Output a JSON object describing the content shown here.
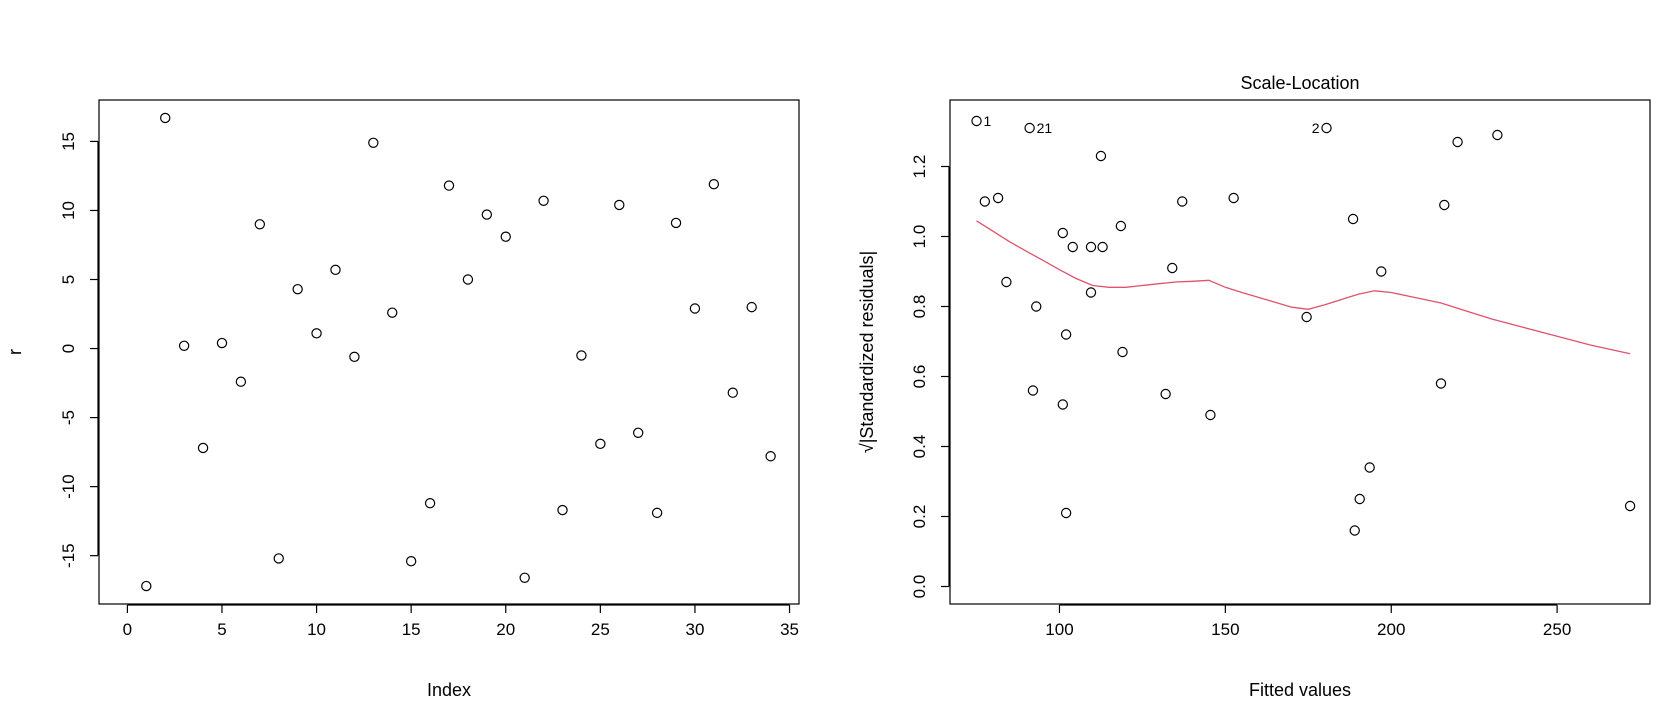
{
  "chart_data": [
    {
      "type": "scatter",
      "title": "",
      "xlabel": "Index",
      "ylabel": "r",
      "xlim": [
        -1.5,
        35.5
      ],
      "ylim": [
        -18.5,
        18
      ],
      "x_ticks": [
        0,
        5,
        10,
        15,
        20,
        25,
        30,
        35
      ],
      "y_ticks": [
        -15,
        -10,
        -5,
        0,
        5,
        10,
        15
      ],
      "x_tick_labels": [
        "0",
        "5",
        "10",
        "15",
        "20",
        "25",
        "30",
        "35"
      ],
      "y_tick_labels": [
        "-15",
        "-10",
        "-5",
        "0",
        "5",
        "10",
        "15"
      ],
      "grid": false,
      "series": [
        {
          "x": [
            1,
            2,
            3,
            4,
            5,
            6,
            7,
            8,
            9,
            10,
            11,
            12,
            13,
            14,
            15,
            16,
            17,
            18,
            19,
            20,
            21,
            22,
            23,
            24,
            25,
            26,
            27,
            28,
            29,
            30,
            31,
            32,
            33,
            34
          ],
          "y": [
            -17.2,
            16.7,
            0.2,
            -7.2,
            0.4,
            -2.4,
            9.0,
            -15.2,
            4.3,
            1.1,
            5.7,
            -0.6,
            14.9,
            2.6,
            -15.4,
            -11.2,
            11.8,
            5.0,
            9.7,
            8.1,
            -16.6,
            10.7,
            -11.7,
            -0.5,
            -6.9,
            10.4,
            -6.1,
            -11.9,
            9.1,
            2.9,
            11.9,
            -3.2,
            3.0,
            -7.8
          ]
        }
      ]
    },
    {
      "type": "scatter",
      "title": "Scale-Location",
      "xlabel": "Fitted values",
      "ylabel": "√|Standardized residuals|",
      "xlim": [
        67,
        278
      ],
      "ylim": [
        -0.05,
        1.39
      ],
      "x_ticks": [
        100,
        150,
        200,
        250
      ],
      "y_ticks": [
        0.0,
        0.2,
        0.4,
        0.6,
        0.8,
        1.0,
        1.2
      ],
      "x_tick_labels": [
        "100",
        "150",
        "200",
        "250"
      ],
      "y_tick_labels": [
        "0.0",
        "0.2",
        "0.4",
        "0.6",
        "0.8",
        "1.0",
        "1.2"
      ],
      "grid": false,
      "series": [
        {
          "x": [
            75,
            77.5,
            81.5,
            84,
            91,
            93,
            92,
            101,
            101,
            102,
            102,
            104,
            109.5,
            109.5,
            112.5,
            113,
            118.5,
            119,
            132,
            134,
            137,
            145.5,
            152.5,
            174.5,
            180.5,
            188.5,
            189,
            190.5,
            193.5,
            197,
            215,
            216,
            220,
            232,
            272
          ],
          "y": [
            1.33,
            1.1,
            1.11,
            0.87,
            1.31,
            0.8,
            0.56,
            0.52,
            1.01,
            0.21,
            0.72,
            0.97,
            0.84,
            0.97,
            1.23,
            0.97,
            1.03,
            0.67,
            0.55,
            0.91,
            1.1,
            0.49,
            1.11,
            0.77,
            1.31,
            1.05,
            0.16,
            0.25,
            0.34,
            0.9,
            0.58,
            1.09,
            1.27,
            1.29,
            0.23
          ]
        }
      ],
      "annotations": [
        {
          "text": "1",
          "x": 75,
          "y": 1.33
        },
        {
          "text": "21",
          "x": 91,
          "y": 1.31
        },
        {
          "text": "2",
          "x": 180.5,
          "y": 1.31
        }
      ],
      "smooth_line": {
        "color": "#DF536B",
        "x": [
          75,
          80,
          85,
          90,
          95,
          100,
          105,
          110,
          115,
          120,
          125,
          130,
          135,
          140,
          145,
          150,
          155,
          160,
          165,
          170,
          175,
          180,
          185,
          190,
          195,
          200,
          205,
          210,
          215,
          220,
          230,
          240,
          250,
          260,
          272
        ],
        "y": [
          1.045,
          1.015,
          0.985,
          0.958,
          0.932,
          0.905,
          0.88,
          0.86,
          0.855,
          0.855,
          0.86,
          0.865,
          0.87,
          0.872,
          0.875,
          0.855,
          0.84,
          0.826,
          0.812,
          0.798,
          0.792,
          0.805,
          0.82,
          0.835,
          0.845,
          0.84,
          0.83,
          0.82,
          0.81,
          0.795,
          0.765,
          0.74,
          0.715,
          0.69,
          0.665
        ]
      }
    }
  ]
}
